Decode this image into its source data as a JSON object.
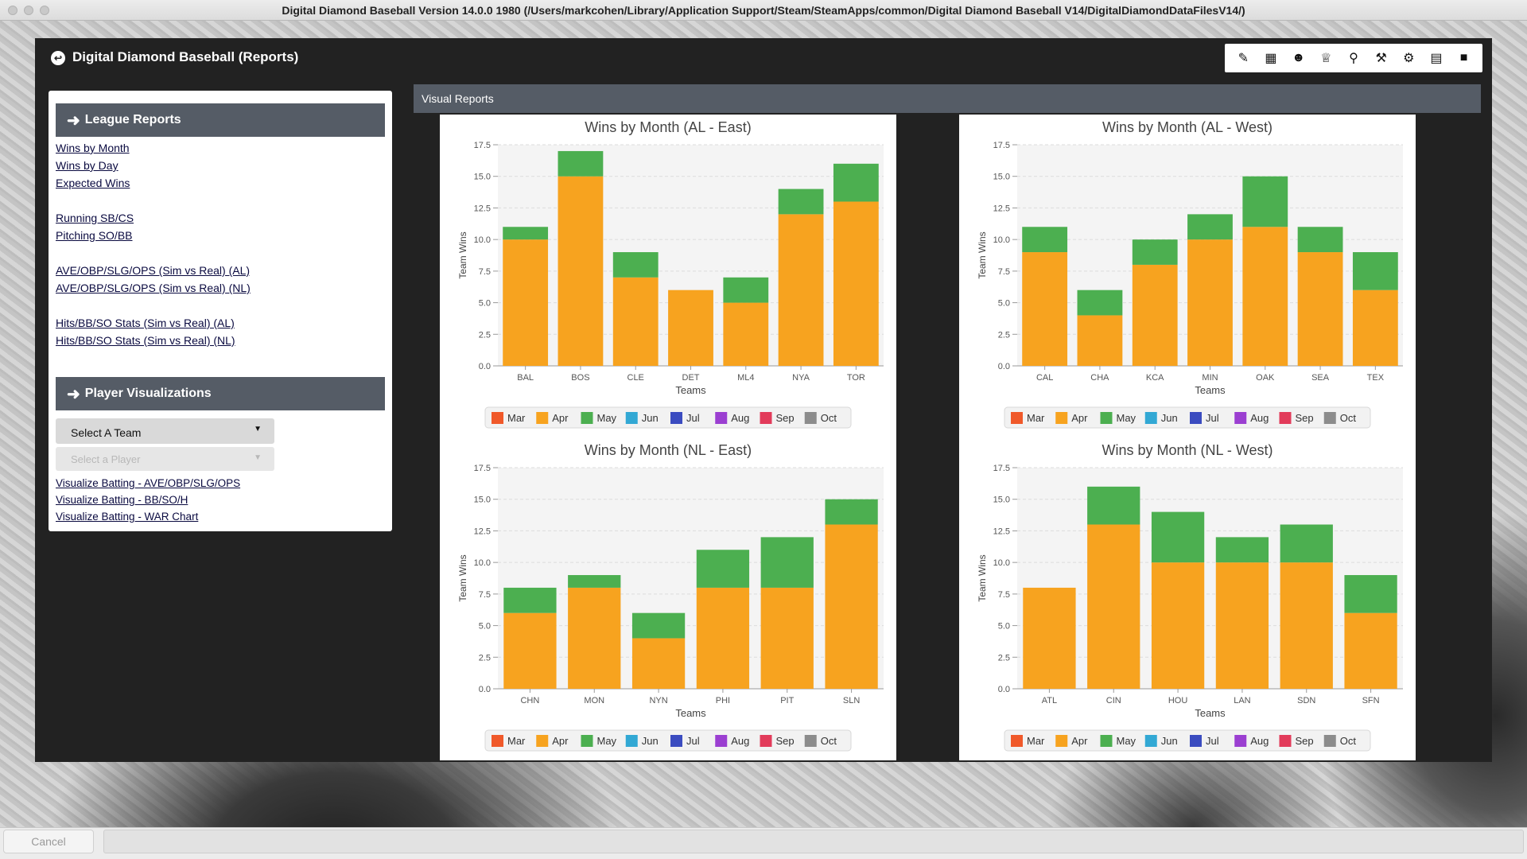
{
  "window": {
    "title": "Digital Diamond Baseball Version 14.0.0 1980  (/Users/markcohen/Library/Application Support/Steam/SteamApps/common/Digital Diamond Baseball V14/DigitalDiamondDataFilesV14/)"
  },
  "app": {
    "title": "Digital Diamond Baseball (Reports)",
    "toolbar_icons": [
      "pencil-icon",
      "grid-icon",
      "team-icon",
      "trophy-icon",
      "search-icon",
      "hammer-icon",
      "gear-icon",
      "clipboard-icon",
      "folder-icon"
    ]
  },
  "sidebar": {
    "league_reports": {
      "header": "League Reports",
      "links": [
        "Wins by Month",
        "Wins by Day",
        "Expected Wins",
        "Running SB/CS",
        "Pitching SO/BB",
        "AVE/OBP/SLG/OPS (Sim vs Real) (AL)",
        "AVE/OBP/SLG/OPS (Sim vs Real) (NL)",
        "Hits/BB/SO Stats (Sim vs Real) (AL)",
        "Hits/BB/SO Stats (Sim vs Real) (NL)"
      ]
    },
    "player_viz": {
      "header": "Player Visualizations",
      "team_select": "Select A Team",
      "player_select": "Select a Player",
      "links": [
        "Visualize Batting - AVE/OBP/SLG/OPS",
        "Visualize Batting - BB/SO/H",
        "Visualize Batting - WAR Chart"
      ]
    }
  },
  "visual_reports": {
    "header": "Visual Reports"
  },
  "footer": {
    "cancel": "Cancel"
  },
  "chart_data": [
    {
      "type": "bar",
      "stacked": true,
      "title": "Wins by Month (AL - East)",
      "xlabel": "Teams",
      "ylabel": "Team Wins",
      "ylim": [
        0,
        17.5
      ],
      "yticks": [
        "0.0",
        "2.5",
        "5.0",
        "7.5",
        "10.0",
        "12.5",
        "15.0",
        "17.5"
      ],
      "grid": true,
      "legend_position": "bottom",
      "categories": [
        "BAL",
        "BOS",
        "CLE",
        "DET",
        "ML4",
        "NYA",
        "TOR"
      ],
      "series": [
        {
          "name": "Mar",
          "values": [
            0,
            0,
            0,
            0,
            0,
            0,
            0
          ]
        },
        {
          "name": "Apr",
          "values": [
            10,
            15,
            7,
            6,
            5,
            12,
            13
          ]
        },
        {
          "name": "May",
          "values": [
            1,
            2,
            2,
            0,
            2,
            2,
            3
          ]
        },
        {
          "name": "Jun",
          "values": [
            0,
            0,
            0,
            0,
            0,
            0,
            0
          ]
        },
        {
          "name": "Jul",
          "values": [
            0,
            0,
            0,
            0,
            0,
            0,
            0
          ]
        },
        {
          "name": "Aug",
          "values": [
            0,
            0,
            0,
            0,
            0,
            0,
            0
          ]
        },
        {
          "name": "Sep",
          "values": [
            0,
            0,
            0,
            0,
            0,
            0,
            0
          ]
        },
        {
          "name": "Oct",
          "values": [
            0,
            0,
            0,
            0,
            0,
            0,
            0
          ]
        }
      ]
    },
    {
      "type": "bar",
      "stacked": true,
      "title": "Wins by Month (AL - West)",
      "xlabel": "Teams",
      "ylabel": "Team Wins",
      "ylim": [
        0,
        17.5
      ],
      "yticks": [
        "0.0",
        "2.5",
        "5.0",
        "7.5",
        "10.0",
        "12.5",
        "15.0",
        "17.5"
      ],
      "grid": true,
      "legend_position": "bottom",
      "categories": [
        "CAL",
        "CHA",
        "KCA",
        "MIN",
        "OAK",
        "SEA",
        "TEX"
      ],
      "series": [
        {
          "name": "Mar",
          "values": [
            0,
            0,
            0,
            0,
            0,
            0,
            0
          ]
        },
        {
          "name": "Apr",
          "values": [
            9,
            4,
            8,
            10,
            11,
            9,
            6
          ]
        },
        {
          "name": "May",
          "values": [
            2,
            2,
            2,
            2,
            4,
            2,
            3
          ]
        },
        {
          "name": "Jun",
          "values": [
            0,
            0,
            0,
            0,
            0,
            0,
            0
          ]
        },
        {
          "name": "Jul",
          "values": [
            0,
            0,
            0,
            0,
            0,
            0,
            0
          ]
        },
        {
          "name": "Aug",
          "values": [
            0,
            0,
            0,
            0,
            0,
            0,
            0
          ]
        },
        {
          "name": "Sep",
          "values": [
            0,
            0,
            0,
            0,
            0,
            0,
            0
          ]
        },
        {
          "name": "Oct",
          "values": [
            0,
            0,
            0,
            0,
            0,
            0,
            0
          ]
        }
      ]
    },
    {
      "type": "bar",
      "stacked": true,
      "title": "Wins by Month (NL - East)",
      "xlabel": "Teams",
      "ylabel": "Team Wins",
      "ylim": [
        0,
        17.5
      ],
      "yticks": [
        "0.0",
        "2.5",
        "5.0",
        "7.5",
        "10.0",
        "12.5",
        "15.0",
        "17.5"
      ],
      "grid": true,
      "legend_position": "bottom",
      "categories": [
        "CHN",
        "MON",
        "NYN",
        "PHI",
        "PIT",
        "SLN"
      ],
      "series": [
        {
          "name": "Mar",
          "values": [
            0,
            0,
            0,
            0,
            0,
            0
          ]
        },
        {
          "name": "Apr",
          "values": [
            6,
            8,
            4,
            8,
            8,
            13
          ]
        },
        {
          "name": "May",
          "values": [
            2,
            1,
            2,
            3,
            4,
            2
          ]
        },
        {
          "name": "Jun",
          "values": [
            0,
            0,
            0,
            0,
            0,
            0
          ]
        },
        {
          "name": "Jul",
          "values": [
            0,
            0,
            0,
            0,
            0,
            0
          ]
        },
        {
          "name": "Aug",
          "values": [
            0,
            0,
            0,
            0,
            0,
            0
          ]
        },
        {
          "name": "Sep",
          "values": [
            0,
            0,
            0,
            0,
            0,
            0
          ]
        },
        {
          "name": "Oct",
          "values": [
            0,
            0,
            0,
            0,
            0,
            0
          ]
        }
      ]
    },
    {
      "type": "bar",
      "stacked": true,
      "title": "Wins by Month (NL - West)",
      "xlabel": "Teams",
      "ylabel": "Team Wins",
      "ylim": [
        0,
        17.5
      ],
      "yticks": [
        "0.0",
        "2.5",
        "5.0",
        "7.5",
        "10.0",
        "12.5",
        "15.0",
        "17.5"
      ],
      "grid": true,
      "legend_position": "bottom",
      "categories": [
        "ATL",
        "CIN",
        "HOU",
        "LAN",
        "SDN",
        "SFN"
      ],
      "series": [
        {
          "name": "Mar",
          "values": [
            0,
            0,
            0,
            0,
            0,
            0
          ]
        },
        {
          "name": "Apr",
          "values": [
            8,
            13,
            10,
            10,
            10,
            6
          ]
        },
        {
          "name": "May",
          "values": [
            0,
            3,
            4,
            2,
            3,
            3
          ]
        },
        {
          "name": "Jun",
          "values": [
            0,
            0,
            0,
            0,
            0,
            0
          ]
        },
        {
          "name": "Jul",
          "values": [
            0,
            0,
            0,
            0,
            0,
            0
          ]
        },
        {
          "name": "Aug",
          "values": [
            0,
            0,
            0,
            0,
            0,
            0
          ]
        },
        {
          "name": "Sep",
          "values": [
            0,
            0,
            0,
            0,
            0,
            0
          ]
        },
        {
          "name": "Oct",
          "values": [
            0,
            0,
            0,
            0,
            0,
            0
          ]
        }
      ]
    }
  ],
  "legend_colors": {
    "Mar": "#f0592a",
    "Apr": "#f7a31f",
    "May": "#4caf50",
    "Jun": "#32a8d4",
    "Jul": "#3b4cc0",
    "Aug": "#9b3fd1",
    "Sep": "#e23b5a",
    "Oct": "#8c8c8c"
  },
  "theme": {
    "app_bg": "#222222",
    "header_bg": "#555c66",
    "link_color": "#0a0a40"
  }
}
